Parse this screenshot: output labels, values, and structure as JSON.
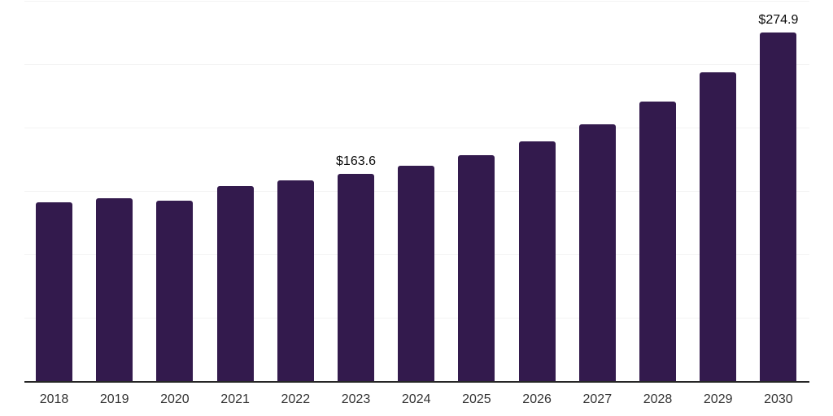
{
  "chart_data": {
    "type": "bar",
    "title": "",
    "xlabel": "",
    "ylabel": "",
    "categories": [
      "2018",
      "2019",
      "2020",
      "2021",
      "2022",
      "2023",
      "2024",
      "2025",
      "2026",
      "2027",
      "2028",
      "2029",
      "2030"
    ],
    "values": [
      141.0,
      144.5,
      142.4,
      154.0,
      158.4,
      163.6,
      169.9,
      178.1,
      189.0,
      202.5,
      220.5,
      243.5,
      274.9
    ],
    "data_labels": [
      {
        "category": "2023",
        "text": "$163.6"
      },
      {
        "category": "2030",
        "text": "$274.9"
      }
    ],
    "ylim": [
      0,
      300
    ],
    "grid_step": 50,
    "grid": true,
    "legend": false,
    "y_axis_labels_visible": false,
    "colors": {
      "bar": "#331a4d",
      "gridline": "#f3f3f3",
      "axis_line": "#262626",
      "tick_label": "#333333",
      "data_label": "#0a0a0a",
      "background": "#ffffff"
    }
  }
}
